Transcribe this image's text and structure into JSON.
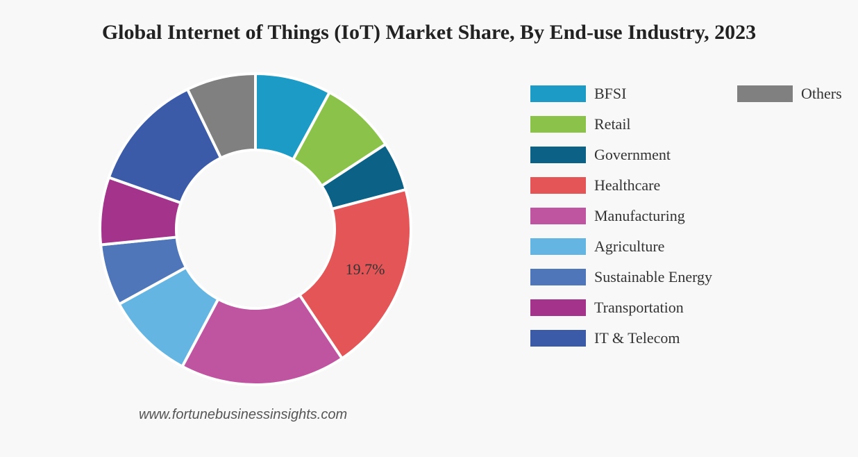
{
  "title": "Global Internet of Things (IoT) Market Share, By End-use Industry, 2023",
  "watermark": "www.fortunebusinessinsights.com",
  "chart_data": {
    "type": "pie",
    "subtype": "donut",
    "title": "Global Internet of Things (IoT) Market Share, By End-use Industry, 2023",
    "unit": "%",
    "categories": [
      "BFSI",
      "Retail",
      "Government",
      "Healthcare",
      "Manufacturing",
      "Agriculture",
      "Sustainable Energy",
      "Transportation",
      "IT & Telecom",
      "Others"
    ],
    "values": [
      7.9,
      7.9,
      5.1,
      19.7,
      17.2,
      9.2,
      6.4,
      7.0,
      12.4,
      7.2
    ],
    "colors": [
      "#1b9bc6",
      "#8bc34a",
      "#0c6286",
      "#e35556",
      "#bf54a0",
      "#65b5e2",
      "#4f76b8",
      "#a3338b",
      "#3b5aa8",
      "#808080"
    ],
    "data_labels": [
      {
        "category": "Healthcare",
        "text": "19.7%"
      }
    ],
    "legend_position": "right"
  },
  "legend": {
    "items": [
      {
        "label": "BFSI",
        "color": "#1b9bc6"
      },
      {
        "label": "Retail",
        "color": "#8bc34a"
      },
      {
        "label": "Government",
        "color": "#0c6286"
      },
      {
        "label": "Healthcare",
        "color": "#e35556"
      },
      {
        "label": "Manufacturing",
        "color": "#bf54a0"
      },
      {
        "label": "Agriculture",
        "color": "#65b5e2"
      },
      {
        "label": "Sustainable Energy",
        "color": "#4f76b8"
      },
      {
        "label": "Transportation",
        "color": "#a3338b"
      },
      {
        "label": "IT & Telecom",
        "color": "#3b5aa8"
      },
      {
        "label": "Others",
        "color": "#808080"
      }
    ]
  }
}
